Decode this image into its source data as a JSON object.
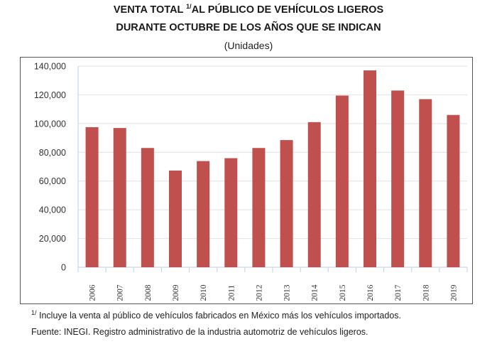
{
  "chart_data": {
    "type": "bar",
    "title_line1": "VENTA TOTAL",
    "title_sup": "1/",
    "title_line1_rest": "AL PÚBLICO DE VEHÍCULOS LIGEROS",
    "title_line2": "DURANTE OCTUBRE DE LOS AÑOS QUE SE INDICAN",
    "subtitle": "(Unidades)",
    "categories": [
      "2006",
      "2007",
      "2008",
      "2009",
      "2010",
      "2011",
      "2012",
      "2013",
      "2014",
      "2015",
      "2016",
      "2017",
      "2018",
      "2019"
    ],
    "values": [
      97500,
      96900,
      83000,
      67300,
      73900,
      75900,
      83000,
      88500,
      101000,
      119500,
      137000,
      123000,
      117000,
      106000
    ],
    "ylim": [
      0,
      140000
    ],
    "yticks": [
      0,
      20000,
      40000,
      60000,
      80000,
      100000,
      120000,
      140000
    ],
    "ytick_labels": [
      "0",
      "20,000",
      "40,000",
      "60,000",
      "80,000",
      "100,000",
      "120,000",
      "140,000"
    ],
    "xlabel": "",
    "ylabel": "",
    "grid": true,
    "bar_color": "#c0504d",
    "grid_color": "#e6e6e6",
    "axis_color": "#c9d7ec"
  },
  "footnotes": {
    "note_sup": "1/",
    "note": "Incluye la venta al público de vehículos fabricados en México más los vehículos importados.",
    "source": "Fuente: INEGI. Registro administrativo de la industria automotriz de vehículos ligeros."
  }
}
